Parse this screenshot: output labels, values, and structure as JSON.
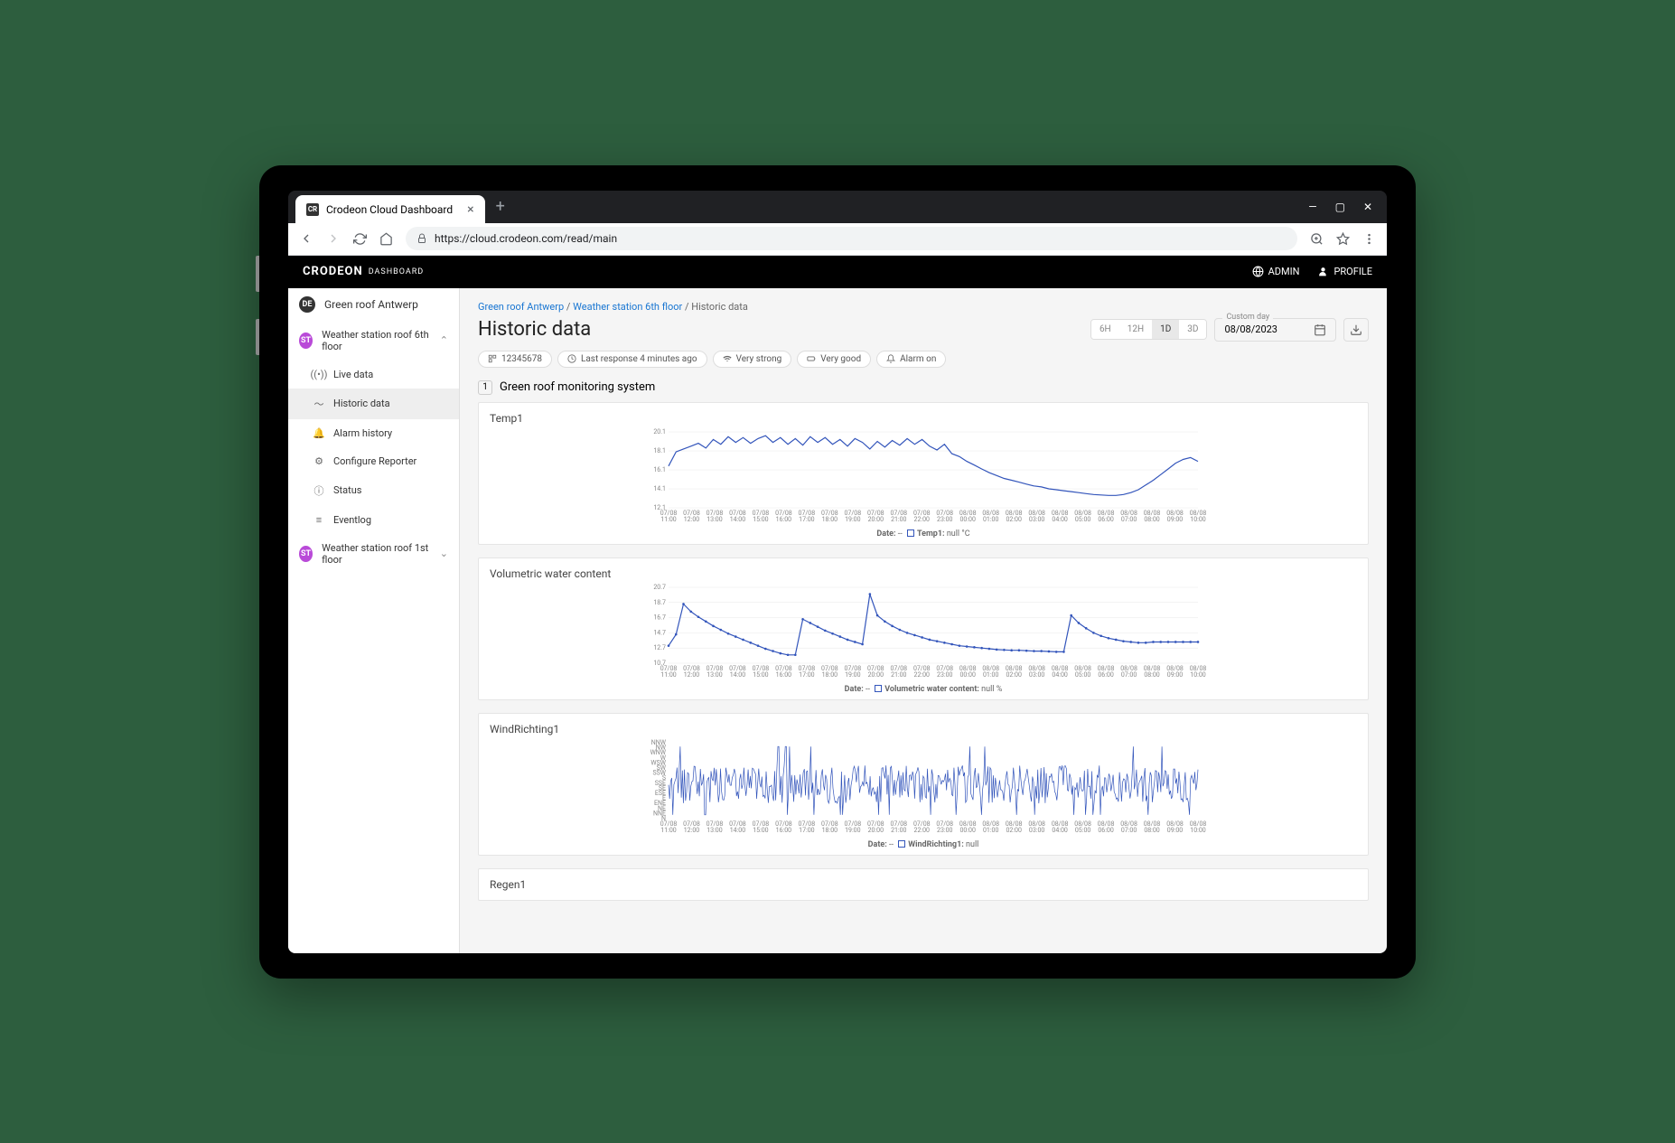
{
  "browser": {
    "tab_title": "Crodeon Cloud Dashboard",
    "tab_favicon": "CR",
    "url": "https://cloud.crodeon.com/read/main"
  },
  "header": {
    "brand": "CRODEON",
    "brand_sub": "DASHBOARD",
    "admin": "ADMIN",
    "profile": "PROFILE"
  },
  "sidebar": {
    "project_badge": "DE",
    "project_badge_color": "#333",
    "project": "Green roof Antwerp",
    "station1_badge": "ST",
    "station_badge_color": "#b94ad8",
    "station1": "Weather station roof 6th floor",
    "items": [
      {
        "icon": "signal",
        "label": "Live data"
      },
      {
        "icon": "chart",
        "label": "Historic data",
        "active": true
      },
      {
        "icon": "bell",
        "label": "Alarm history"
      },
      {
        "icon": "gear",
        "label": "Configure Reporter"
      },
      {
        "icon": "info",
        "label": "Status"
      },
      {
        "icon": "list",
        "label": "Eventlog"
      }
    ],
    "station2_badge": "ST",
    "station2": "Weather station roof 1st floor"
  },
  "breadcrumb": {
    "p1": "Green roof Antwerp",
    "p2": "Weather station 6th floor",
    "p3": "Historic data"
  },
  "page_title": "Historic data",
  "range": {
    "segments": [
      "6H",
      "12H",
      "1D",
      "3D"
    ],
    "active": "1D",
    "date_label": "Custom day",
    "date_value": "08/08/2023"
  },
  "chips": {
    "device": "12345678",
    "response": "Last response 4 minutes ago",
    "signal": "Very strong",
    "battery": "Very good",
    "alarm": "Alarm on"
  },
  "section": {
    "num": "1",
    "title": "Green roof monitoring system"
  },
  "charts": {
    "line_color": "#3355bb",
    "grid_color": "#e8e8e8",
    "x_labels": [
      {
        "d": "07/08",
        "t": "11:00"
      },
      {
        "d": "07/08",
        "t": "12:00"
      },
      {
        "d": "07/08",
        "t": "13:00"
      },
      {
        "d": "07/08",
        "t": "14:00"
      },
      {
        "d": "07/08",
        "t": "15:00"
      },
      {
        "d": "07/08",
        "t": "16:00"
      },
      {
        "d": "07/08",
        "t": "17:00"
      },
      {
        "d": "07/08",
        "t": "18:00"
      },
      {
        "d": "07/08",
        "t": "19:00"
      },
      {
        "d": "07/08",
        "t": "20:00"
      },
      {
        "d": "07/08",
        "t": "21:00"
      },
      {
        "d": "07/08",
        "t": "22:00"
      },
      {
        "d": "07/08",
        "t": "23:00"
      },
      {
        "d": "08/08",
        "t": "00:00"
      },
      {
        "d": "08/08",
        "t": "01:00"
      },
      {
        "d": "08/08",
        "t": "02:00"
      },
      {
        "d": "08/08",
        "t": "03:00"
      },
      {
        "d": "08/08",
        "t": "04:00"
      },
      {
        "d": "08/08",
        "t": "05:00"
      },
      {
        "d": "08/08",
        "t": "06:00"
      },
      {
        "d": "08/08",
        "t": "07:00"
      },
      {
        "d": "08/08",
        "t": "08:00"
      },
      {
        "d": "08/08",
        "t": "09:00"
      },
      {
        "d": "08/08",
        "t": "10:00"
      }
    ],
    "temp": {
      "title": "Temp1",
      "y_labels": [
        "20.1",
        "18.1",
        "16.1",
        "14.1",
        "12.1"
      ],
      "ylim": [
        12.1,
        20.1
      ],
      "legend": "Temp1:",
      "legend_unit": "null °C",
      "date_label": "Date:",
      "values": [
        16.5,
        18.0,
        18.3,
        18.6,
        18.9,
        18.4,
        19.3,
        18.8,
        19.6,
        19.0,
        19.5,
        18.9,
        19.4,
        19.7,
        19.0,
        19.5,
        18.8,
        19.4,
        18.7,
        19.6,
        19.0,
        19.5,
        18.8,
        19.3,
        18.6,
        19.4,
        19.0,
        18.3,
        19.1,
        18.5,
        19.2,
        18.7,
        19.4,
        18.8,
        19.3,
        18.6,
        18.2,
        18.8,
        17.8,
        17.5,
        17.0,
        16.6,
        16.2,
        15.8,
        15.5,
        15.2,
        15.0,
        14.8,
        14.6,
        14.4,
        14.3,
        14.1,
        14.0,
        13.9,
        13.8,
        13.7,
        13.6,
        13.5,
        13.45,
        13.4,
        13.4,
        13.5,
        13.7,
        14.0,
        14.5,
        15.0,
        15.6,
        16.2,
        16.8,
        17.2,
        17.4,
        17.0
      ]
    },
    "vwc": {
      "title": "Volumetric water content",
      "y_labels": [
        "20.7",
        "18.7",
        "16.7",
        "14.7",
        "12.7",
        "10.7"
      ],
      "ylim": [
        10.7,
        20.7
      ],
      "legend": "Volumetric water content:",
      "legend_unit": "null %",
      "date_label": "Date:",
      "values": [
        13.0,
        14.5,
        18.5,
        17.5,
        16.8,
        16.2,
        15.6,
        15.1,
        14.6,
        14.2,
        13.8,
        13.4,
        13.0,
        12.6,
        12.3,
        12.0,
        11.8,
        11.8,
        16.5,
        16.0,
        15.5,
        15.0,
        14.6,
        14.2,
        13.8,
        13.5,
        13.2,
        19.8,
        17.0,
        16.2,
        15.6,
        15.1,
        14.7,
        14.4,
        14.1,
        13.8,
        13.6,
        13.4,
        13.2,
        13.0,
        12.9,
        12.8,
        12.7,
        12.6,
        12.5,
        12.45,
        12.4,
        12.4,
        12.35,
        12.3,
        12.3,
        12.25,
        12.2,
        12.2,
        17.0,
        16.0,
        15.3,
        14.7,
        14.3,
        14.0,
        13.8,
        13.6,
        13.5,
        13.4,
        13.4,
        13.5,
        13.5,
        13.5,
        13.5,
        13.5,
        13.5,
        13.5
      ]
    },
    "wind": {
      "title": "WindRichting1",
      "y_labels": [
        "NNW",
        "NW",
        "WNW",
        "W",
        "WSW",
        "SW",
        "SSW",
        "S",
        "SSE",
        "SE",
        "ESE",
        "E",
        "ENE",
        "NE",
        "NNE",
        "N"
      ],
      "legend": "WindRichting1:",
      "legend_unit": "null",
      "date_label": "Date:",
      "type": "noise"
    },
    "regen": {
      "title": "Regen1"
    }
  }
}
